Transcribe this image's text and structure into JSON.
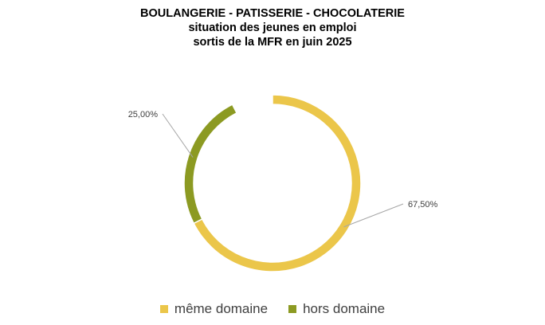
{
  "chart_data": {
    "type": "pie",
    "style": "donut",
    "title_lines": [
      "BOULANGERIE - PATISSERIE - CHOCOLATERIE",
      "situation des jeunes en emploi",
      "sortis de la MFR en juin 2025"
    ],
    "slices": [
      {
        "name": "même domaine",
        "value": 67.5,
        "label": "67,50%",
        "color": "#EBC64A"
      },
      {
        "name": "hors domaine",
        "value": 25.0,
        "label": "25,00%",
        "color": "#8C9A22"
      }
    ],
    "legend_position": "bottom",
    "leader_line_color": "#A6A6A6"
  }
}
